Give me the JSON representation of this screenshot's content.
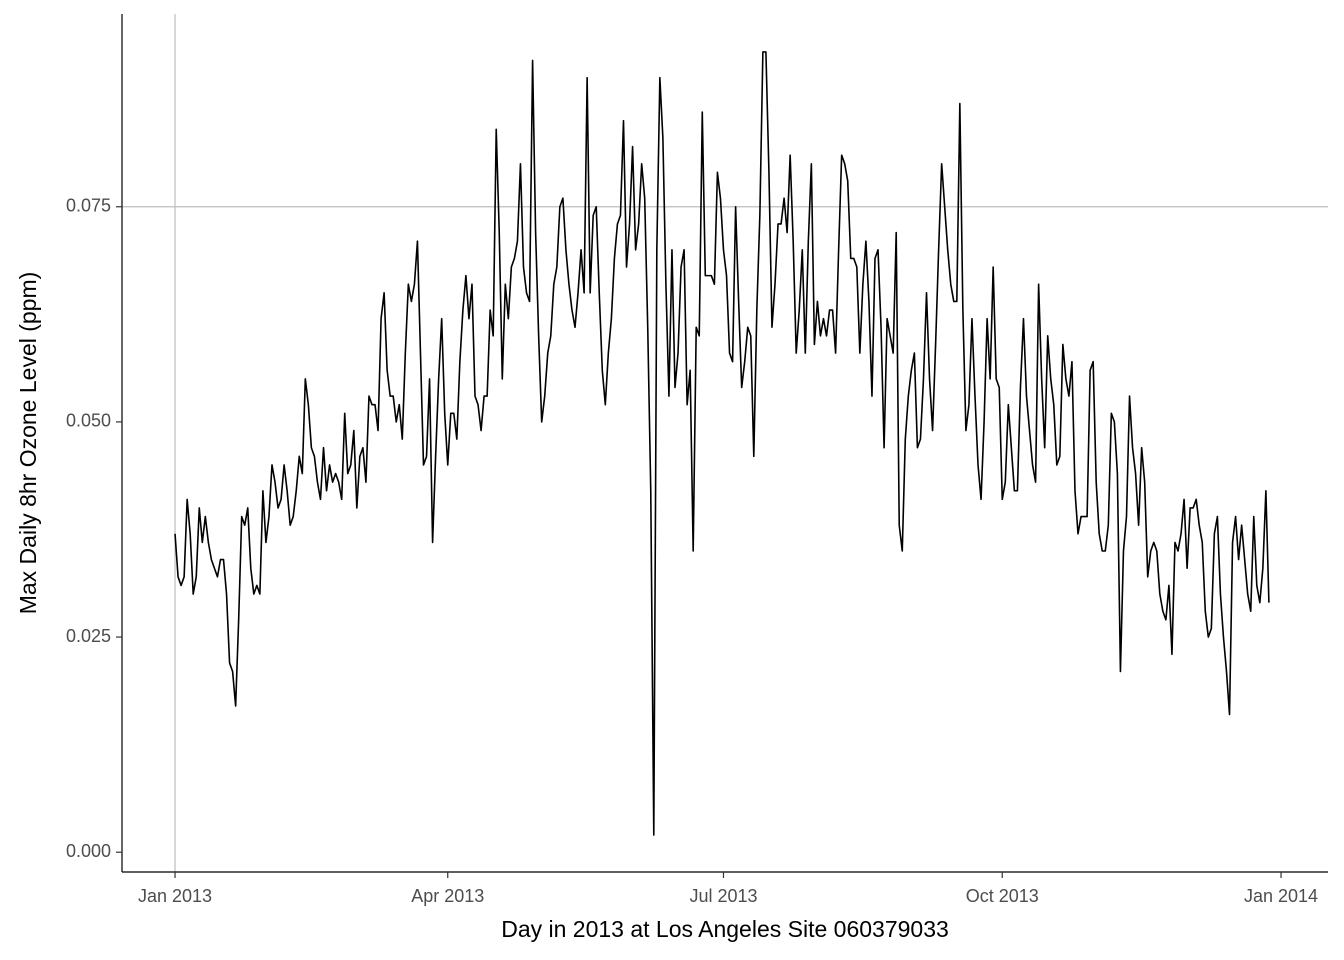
{
  "chart_data": {
    "type": "line",
    "x_label": "Day in 2013 at Los Angeles Site 060379033",
    "y_label": "Max Daily 8hr Ozone Level (ppm)",
    "color": "#000000",
    "reference_lines": {
      "x": 0,
      "y": 0.075,
      "color": "#bebebe"
    },
    "xlim": [
      -17.5,
      380.5
    ],
    "ylim": [
      -0.0023,
      0.0974
    ],
    "xticks": [
      {
        "value": 0,
        "label": "Jan 2013"
      },
      {
        "value": 90,
        "label": "Apr 2013"
      },
      {
        "value": 181,
        "label": "Jul 2013"
      },
      {
        "value": 273,
        "label": "Oct 2013"
      },
      {
        "value": 365,
        "label": "Jan 2014"
      }
    ],
    "yticks": [
      {
        "value": 0,
        "label": "0.000"
      },
      {
        "value": 0.025,
        "label": "0.025"
      },
      {
        "value": 0.05,
        "label": "0.050"
      },
      {
        "value": 0.075,
        "label": "0.075"
      }
    ],
    "x": [
      0,
      1,
      2,
      3,
      4,
      5,
      6,
      7,
      8,
      9,
      10,
      11,
      12,
      13,
      14,
      15,
      16,
      17,
      18,
      19,
      20,
      21,
      22,
      23,
      24,
      25,
      26,
      27,
      28,
      29,
      30,
      31,
      32,
      33,
      34,
      35,
      36,
      37,
      38,
      39,
      40,
      41,
      42,
      43,
      44,
      45,
      46,
      47,
      48,
      49,
      50,
      51,
      52,
      53,
      54,
      55,
      56,
      57,
      58,
      59,
      60,
      61,
      62,
      63,
      64,
      65,
      66,
      67,
      68,
      69,
      70,
      71,
      72,
      73,
      74,
      75,
      76,
      77,
      78,
      79,
      80,
      81,
      82,
      83,
      84,
      85,
      86,
      87,
      88,
      89,
      90,
      91,
      92,
      93,
      94,
      95,
      96,
      97,
      98,
      99,
      100,
      101,
      102,
      103,
      104,
      105,
      106,
      107,
      108,
      109,
      110,
      111,
      112,
      113,
      114,
      115,
      116,
      117,
      118,
      119,
      120,
      121,
      122,
      123,
      124,
      125,
      126,
      127,
      128,
      129,
      130,
      131,
      132,
      133,
      134,
      135,
      136,
      137,
      138,
      139,
      140,
      141,
      142,
      143,
      144,
      145,
      146,
      147,
      148,
      149,
      150,
      151,
      152,
      153,
      154,
      155,
      156,
      157,
      158,
      159,
      160,
      161,
      162,
      163,
      164,
      165,
      166,
      167,
      168,
      169,
      170,
      171,
      172,
      173,
      174,
      175,
      176,
      177,
      178,
      179,
      180,
      181,
      182,
      183,
      184,
      185,
      186,
      187,
      188,
      189,
      190,
      191,
      192,
      193,
      194,
      195,
      196,
      197,
      198,
      199,
      200,
      201,
      202,
      203,
      204,
      205,
      206,
      207,
      208,
      209,
      210,
      211,
      212,
      213,
      214,
      215,
      216,
      217,
      218,
      219,
      220,
      221,
      222,
      223,
      224,
      225,
      226,
      227,
      228,
      229,
      230,
      231,
      232,
      233,
      234,
      235,
      236,
      237,
      238,
      239,
      240,
      241,
      242,
      243,
      244,
      245,
      246,
      247,
      248,
      249,
      250,
      251,
      252,
      253,
      254,
      255,
      256,
      257,
      258,
      259,
      260,
      261,
      262,
      263,
      264,
      265,
      266,
      267,
      268,
      269,
      270,
      271,
      272,
      273,
      274,
      275,
      276,
      277,
      278,
      279,
      280,
      281,
      282,
      283,
      284,
      285,
      286,
      287,
      288,
      289,
      290,
      291,
      292,
      293,
      294,
      295,
      296,
      297,
      298,
      299,
      300,
      301,
      302,
      303,
      304,
      305,
      306,
      307,
      308,
      309,
      310,
      311,
      312,
      313,
      314,
      315,
      316,
      317,
      318,
      319,
      320,
      321,
      322,
      323,
      324,
      325,
      326,
      327,
      328,
      329,
      330,
      331,
      332,
      333,
      334,
      335,
      336,
      337,
      338,
      339,
      340,
      341,
      342,
      343,
      344,
      345,
      346,
      347,
      348,
      349,
      350,
      351,
      352,
      353,
      354,
      355,
      356,
      357,
      358,
      359,
      360,
      361
    ],
    "values": [
      0.037,
      0.032,
      0.031,
      0.032,
      0.041,
      0.037,
      0.03,
      0.032,
      0.04,
      0.036,
      0.039,
      0.036,
      0.034,
      0.033,
      0.032,
      0.034,
      0.034,
      0.03,
      0.022,
      0.021,
      0.017,
      0.027,
      0.039,
      0.038,
      0.04,
      0.033,
      0.03,
      0.031,
      0.03,
      0.042,
      0.036,
      0.039,
      0.045,
      0.043,
      0.04,
      0.041,
      0.045,
      0.042,
      0.038,
      0.039,
      0.042,
      0.046,
      0.044,
      0.055,
      0.052,
      0.047,
      0.046,
      0.043,
      0.041,
      0.047,
      0.042,
      0.045,
      0.043,
      0.044,
      0.043,
      0.041,
      0.051,
      0.044,
      0.045,
      0.049,
      0.04,
      0.046,
      0.047,
      0.043,
      0.053,
      0.052,
      0.052,
      0.049,
      0.062,
      0.065,
      0.056,
      0.053,
      0.053,
      0.05,
      0.052,
      0.048,
      0.058,
      0.066,
      0.064,
      0.066,
      0.071,
      0.058,
      0.045,
      0.046,
      0.055,
      0.036,
      0.046,
      0.055,
      0.062,
      0.051,
      0.045,
      0.051,
      0.051,
      0.048,
      0.057,
      0.063,
      0.067,
      0.062,
      0.066,
      0.053,
      0.052,
      0.049,
      0.053,
      0.053,
      0.063,
      0.06,
      0.084,
      0.072,
      0.055,
      0.066,
      0.062,
      0.068,
      0.069,
      0.071,
      0.08,
      0.068,
      0.065,
      0.064,
      0.092,
      0.072,
      0.06,
      0.05,
      0.053,
      0.058,
      0.06,
      0.066,
      0.068,
      0.075,
      0.076,
      0.07,
      0.066,
      0.063,
      0.061,
      0.065,
      0.07,
      0.065,
      0.09,
      0.065,
      0.074,
      0.075,
      0.065,
      0.056,
      0.052,
      0.058,
      0.062,
      0.069,
      0.073,
      0.074,
      0.085,
      0.068,
      0.073,
      0.082,
      0.07,
      0.073,
      0.08,
      0.076,
      0.061,
      0.042,
      0.002,
      0.07,
      0.09,
      0.083,
      0.066,
      0.053,
      0.07,
      0.054,
      0.058,
      0.068,
      0.07,
      0.052,
      0.056,
      0.035,
      0.061,
      0.06,
      0.086,
      0.067,
      0.067,
      0.067,
      0.066,
      0.079,
      0.076,
      0.07,
      0.067,
      0.058,
      0.057,
      0.075,
      0.064,
      0.054,
      0.057,
      0.061,
      0.06,
      0.046,
      0.063,
      0.074,
      0.093,
      0.093,
      0.079,
      0.061,
      0.066,
      0.073,
      0.073,
      0.076,
      0.072,
      0.081,
      0.071,
      0.058,
      0.063,
      0.07,
      0.058,
      0.071,
      0.08,
      0.059,
      0.064,
      0.06,
      0.062,
      0.06,
      0.063,
      0.063,
      0.058,
      0.07,
      0.081,
      0.08,
      0.078,
      0.069,
      0.069,
      0.068,
      0.058,
      0.066,
      0.071,
      0.064,
      0.053,
      0.069,
      0.07,
      0.061,
      0.047,
      0.062,
      0.06,
      0.058,
      0.072,
      0.038,
      0.035,
      0.048,
      0.053,
      0.056,
      0.058,
      0.047,
      0.048,
      0.055,
      0.065,
      0.055,
      0.049,
      0.059,
      0.07,
      0.08,
      0.075,
      0.07,
      0.066,
      0.064,
      0.064,
      0.087,
      0.063,
      0.049,
      0.052,
      0.062,
      0.053,
      0.045,
      0.041,
      0.05,
      0.062,
      0.055,
      0.068,
      0.055,
      0.054,
      0.041,
      0.043,
      0.052,
      0.047,
      0.042,
      0.042,
      0.054,
      0.062,
      0.053,
      0.049,
      0.045,
      0.043,
      0.066,
      0.055,
      0.047,
      0.06,
      0.055,
      0.052,
      0.045,
      0.046,
      0.059,
      0.055,
      0.053,
      0.057,
      0.042,
      0.037,
      0.039,
      0.039,
      0.039,
      0.056,
      0.057,
      0.043,
      0.037,
      0.035,
      0.035,
      0.038,
      0.051,
      0.05,
      0.044,
      0.021,
      0.035,
      0.039,
      0.053,
      0.047,
      0.044,
      0.038,
      0.047,
      0.043,
      0.032,
      0.035,
      0.036,
      0.035,
      0.03,
      0.028,
      0.027,
      0.031,
      0.023,
      0.036,
      0.035,
      0.037,
      0.041,
      0.033,
      0.04,
      0.04,
      0.041,
      0.038,
      0.036,
      0.028,
      0.025,
      0.026,
      0.037,
      0.039,
      0.03,
      0.025,
      0.021,
      0.016,
      0.036,
      0.039,
      0.034,
      0.038,
      0.034,
      0.03,
      0.028,
      0.039,
      0.031,
      0.029,
      0.033,
      0.042,
      0.029
    ]
  }
}
